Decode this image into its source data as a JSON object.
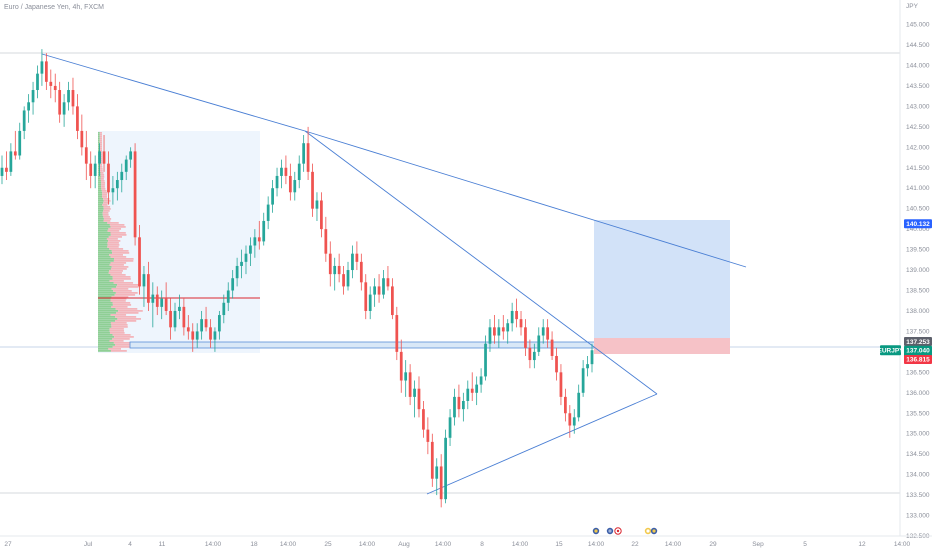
{
  "header": {
    "symbol_title": "Euro / Japanese Yen, 4h, FXCM",
    "currency": "JPY"
  },
  "colors": {
    "up": "#26a69a",
    "down": "#ef5350",
    "trendline": "#4a7fd4",
    "target_zone": "#cddff7",
    "stop_zone": "#f6c2c7",
    "entry_box": "#d9e8f7",
    "volume_profile_buy": "#8fcf95",
    "volume_profile_sell": "#f3b5bb",
    "poc": "#d9262f"
  },
  "price_tags": [
    {
      "label": "",
      "value": "140.132",
      "bg": "#2962ff",
      "color": "#ffffff"
    },
    {
      "label": "",
      "value": "137.253",
      "bg": "#5d606b",
      "color": "#ffffff"
    },
    {
      "label": "EURJPY",
      "value": "137.040",
      "extra": "13:14",
      "bg": "#089981",
      "color": "#ffffff"
    },
    {
      "label": "",
      "value": "136.815",
      "bg": "#f23645",
      "color": "#ffffff"
    }
  ],
  "chart_data": {
    "type": "candlestick",
    "title": "Euro / Japanese Yen, 4h, FXCM",
    "y_unit": "JPY",
    "ylim": [
      132.5,
      145.6
    ],
    "y_ticks": [
      "132.500",
      "133.000",
      "133.500",
      "134.000",
      "134.500",
      "135.000",
      "135.500",
      "136.000",
      "136.500",
      "137.000",
      "137.500",
      "138.000",
      "138.500",
      "139.000",
      "139.500",
      "140.000",
      "140.500",
      "141.000",
      "141.500",
      "142.000",
      "142.500",
      "143.000",
      "143.500",
      "144.000",
      "144.500",
      "145.000"
    ],
    "x_ticks": [
      "27",
      "Jul",
      "4",
      "11",
      "14:00",
      "18",
      "14:00",
      "25",
      "14:00",
      "Aug",
      "14:00",
      "8",
      "14:00",
      "15",
      "14:00",
      "22",
      "14:00",
      "29",
      "Sep",
      "5",
      "12",
      "14:00"
    ],
    "candles": [
      [
        141.3,
        141.8,
        141.1,
        141.5
      ],
      [
        141.5,
        141.9,
        141.2,
        141.4
      ],
      [
        141.4,
        142.1,
        141.3,
        141.9
      ],
      [
        141.9,
        142.4,
        141.7,
        141.8
      ],
      [
        141.8,
        142.6,
        141.7,
        142.4
      ],
      [
        142.4,
        143.0,
        142.2,
        142.9
      ],
      [
        142.9,
        143.3,
        142.6,
        143.1
      ],
      [
        143.1,
        143.6,
        142.8,
        143.4
      ],
      [
        143.4,
        144.0,
        143.2,
        143.8
      ],
      [
        143.8,
        144.4,
        143.5,
        144.1
      ],
      [
        144.1,
        144.3,
        143.4,
        143.6
      ],
      [
        143.6,
        143.9,
        143.2,
        143.5
      ],
      [
        143.5,
        143.8,
        143.1,
        143.4
      ],
      [
        143.4,
        143.6,
        142.6,
        142.8
      ],
      [
        142.8,
        143.3,
        142.5,
        143.1
      ],
      [
        143.1,
        143.6,
        142.9,
        143.4
      ],
      [
        143.4,
        143.7,
        142.8,
        143.0
      ],
      [
        143.0,
        143.3,
        142.2,
        142.4
      ],
      [
        142.4,
        142.8,
        141.8,
        142.0
      ],
      [
        142.0,
        142.4,
        141.2,
        141.6
      ],
      [
        141.6,
        141.9,
        141.0,
        141.3
      ],
      [
        141.3,
        141.8,
        141.0,
        141.6
      ],
      [
        141.6,
        142.1,
        141.3,
        141.9
      ],
      [
        141.9,
        142.3,
        141.4,
        141.6
      ],
      [
        141.6,
        141.9,
        140.6,
        140.9
      ],
      [
        140.9,
        141.3,
        140.6,
        141.0
      ],
      [
        141.0,
        141.4,
        140.7,
        141.2
      ],
      [
        141.2,
        141.6,
        140.9,
        141.4
      ],
      [
        141.4,
        141.8,
        141.2,
        141.7
      ],
      [
        141.7,
        142.0,
        141.5,
        141.9
      ],
      [
        141.9,
        142.1,
        139.6,
        139.8
      ],
      [
        139.8,
        140.1,
        138.4,
        138.6
      ],
      [
        138.6,
        139.1,
        138.1,
        138.9
      ],
      [
        138.9,
        139.2,
        138.0,
        138.2
      ],
      [
        138.2,
        138.7,
        137.6,
        138.4
      ],
      [
        138.4,
        138.6,
        137.9,
        138.1
      ],
      [
        138.1,
        138.5,
        137.8,
        138.3
      ],
      [
        138.3,
        138.7,
        137.9,
        138.0
      ],
      [
        138.0,
        138.3,
        137.3,
        137.6
      ],
      [
        137.6,
        138.2,
        137.5,
        138.0
      ],
      [
        138.0,
        138.4,
        137.8,
        138.1
      ],
      [
        138.1,
        138.3,
        137.4,
        137.6
      ],
      [
        137.6,
        137.9,
        137.3,
        137.5
      ],
      [
        137.5,
        137.7,
        137.0,
        137.3
      ],
      [
        137.3,
        137.7,
        137.1,
        137.5
      ],
      [
        137.5,
        138.0,
        137.3,
        137.8
      ],
      [
        137.8,
        138.1,
        137.5,
        137.6
      ],
      [
        137.6,
        137.8,
        137.1,
        137.3
      ],
      [
        137.3,
        137.6,
        137.0,
        137.5
      ],
      [
        137.5,
        138.0,
        137.3,
        137.9
      ],
      [
        137.9,
        138.4,
        137.7,
        138.2
      ],
      [
        138.2,
        138.7,
        138.0,
        138.5
      ],
      [
        138.5,
        139.0,
        138.3,
        138.8
      ],
      [
        138.8,
        139.3,
        138.6,
        139.1
      ],
      [
        139.1,
        139.5,
        138.8,
        139.2
      ],
      [
        139.2,
        139.6,
        138.9,
        139.4
      ],
      [
        139.4,
        139.8,
        139.1,
        139.6
      ],
      [
        139.6,
        140.0,
        139.3,
        139.8
      ],
      [
        139.8,
        140.2,
        139.5,
        139.7
      ],
      [
        139.7,
        140.4,
        139.6,
        140.2
      ],
      [
        140.2,
        140.8,
        140.0,
        140.6
      ],
      [
        140.6,
        141.2,
        140.4,
        141.0
      ],
      [
        141.0,
        141.5,
        140.8,
        141.3
      ],
      [
        141.3,
        141.7,
        141.0,
        141.5
      ],
      [
        141.5,
        141.8,
        141.1,
        141.3
      ],
      [
        141.3,
        141.6,
        140.7,
        140.9
      ],
      [
        140.9,
        141.4,
        140.7,
        141.2
      ],
      [
        141.2,
        141.8,
        141.0,
        141.6
      ],
      [
        141.6,
        142.3,
        141.4,
        142.1
      ],
      [
        142.1,
        142.5,
        141.2,
        141.4
      ],
      [
        141.4,
        141.6,
        140.3,
        140.5
      ],
      [
        140.5,
        140.9,
        140.2,
        140.7
      ],
      [
        140.7,
        140.9,
        139.8,
        140.0
      ],
      [
        140.0,
        140.3,
        139.2,
        139.4
      ],
      [
        139.4,
        139.7,
        138.6,
        138.9
      ],
      [
        138.9,
        139.3,
        138.5,
        139.1
      ],
      [
        139.1,
        139.4,
        138.7,
        138.9
      ],
      [
        138.9,
        139.1,
        138.4,
        138.6
      ],
      [
        138.6,
        139.2,
        138.5,
        139.0
      ],
      [
        139.0,
        139.6,
        138.8,
        139.4
      ],
      [
        139.4,
        139.7,
        139.0,
        139.2
      ],
      [
        139.2,
        139.4,
        138.5,
        138.7
      ],
      [
        138.7,
        138.9,
        137.8,
        138.0
      ],
      [
        138.0,
        138.6,
        137.8,
        138.4
      ],
      [
        138.4,
        138.8,
        138.1,
        138.6
      ],
      [
        138.6,
        138.9,
        138.2,
        138.4
      ],
      [
        138.4,
        139.0,
        138.3,
        138.8
      ],
      [
        138.8,
        139.1,
        138.5,
        138.6
      ],
      [
        138.6,
        138.8,
        137.8,
        137.9
      ],
      [
        137.9,
        138.1,
        136.8,
        137.0
      ],
      [
        137.0,
        137.3,
        136.0,
        136.3
      ],
      [
        136.3,
        136.8,
        135.9,
        136.5
      ],
      [
        136.5,
        136.7,
        135.7,
        135.9
      ],
      [
        135.9,
        136.3,
        135.4,
        136.1
      ],
      [
        136.1,
        136.4,
        135.4,
        135.6
      ],
      [
        135.6,
        135.8,
        134.9,
        135.1
      ],
      [
        135.1,
        135.4,
        134.5,
        134.8
      ],
      [
        134.8,
        135.0,
        133.7,
        133.9
      ],
      [
        133.9,
        134.4,
        133.5,
        134.2
      ],
      [
        134.2,
        134.5,
        133.2,
        133.4
      ],
      [
        133.4,
        135.1,
        133.3,
        134.9
      ],
      [
        134.9,
        135.6,
        134.7,
        135.4
      ],
      [
        135.4,
        136.1,
        135.2,
        135.9
      ],
      [
        135.9,
        136.2,
        135.4,
        135.6
      ],
      [
        135.6,
        136.0,
        135.3,
        135.8
      ],
      [
        135.8,
        136.3,
        135.6,
        136.1
      ],
      [
        136.1,
        136.5,
        135.8,
        136.0
      ],
      [
        136.0,
        136.4,
        135.7,
        136.2
      ],
      [
        136.2,
        136.6,
        136.0,
        136.4
      ],
      [
        136.4,
        137.4,
        136.3,
        137.2
      ],
      [
        137.2,
        137.8,
        137.0,
        137.6
      ],
      [
        137.6,
        137.9,
        137.2,
        137.4
      ],
      [
        137.4,
        137.8,
        137.1,
        137.6
      ],
      [
        137.6,
        137.9,
        137.3,
        137.5
      ],
      [
        137.5,
        137.8,
        137.2,
        137.7
      ],
      [
        137.7,
        138.2,
        137.5,
        138.0
      ],
      [
        138.0,
        138.3,
        137.6,
        137.8
      ],
      [
        137.8,
        138.0,
        137.4,
        137.6
      ],
      [
        137.6,
        137.8,
        136.9,
        137.1
      ],
      [
        137.1,
        137.3,
        136.6,
        136.8
      ],
      [
        136.8,
        137.2,
        136.6,
        137.0
      ],
      [
        137.0,
        137.6,
        136.9,
        137.4
      ],
      [
        137.4,
        137.8,
        137.2,
        137.6
      ],
      [
        137.6,
        137.8,
        137.1,
        137.3
      ],
      [
        137.3,
        137.5,
        136.8,
        136.9
      ],
      [
        136.9,
        137.1,
        136.3,
        136.5
      ],
      [
        136.5,
        136.7,
        135.7,
        135.9
      ],
      [
        135.9,
        136.1,
        135.3,
        135.5
      ],
      [
        135.5,
        135.7,
        134.9,
        135.2
      ],
      [
        135.2,
        135.6,
        135.0,
        135.4
      ],
      [
        135.4,
        136.2,
        135.3,
        136.0
      ],
      [
        136.0,
        136.8,
        135.9,
        136.6
      ],
      [
        136.6,
        136.9,
        136.4,
        136.7
      ],
      [
        136.7,
        137.2,
        136.5,
        137.04
      ]
    ],
    "annotations": {
      "volume_profile_poc": 138.15,
      "target_top": 140.132,
      "entry": 137.253,
      "stop": 136.815
    }
  }
}
